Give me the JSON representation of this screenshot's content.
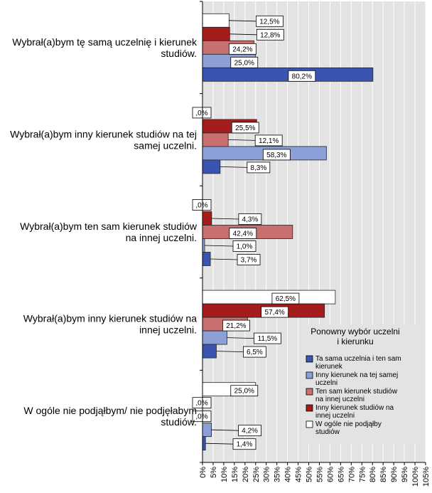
{
  "chart_data": {
    "type": "bar",
    "orientation": "horizontal",
    "categories": [
      [
        "Wybrał(a)bym tę samą uczelnię i kierunek",
        "studiów."
      ],
      [
        "Wybrał(a)bym inny kierunek studiów na tej",
        "samej uczelni."
      ],
      [
        "Wybrał(a)bym ten sam kierunek studiów",
        "na innej uczelni."
      ],
      [
        "Wybrał(a)bym inny kierunek studiów na",
        "innej uczelni."
      ],
      [
        "W ogóle nie podjąłbym/ nie podjęłabym",
        "studiów."
      ]
    ],
    "series": [
      {
        "name": [
          "W ogóle nie podjąłby",
          "studiów"
        ],
        "color": "#ffffff",
        "values": [
          12.5,
          0.0,
          0.0,
          62.5,
          25.0
        ],
        "labels": [
          "12,5%",
          ",0%",
          ",0%",
          "62,5%",
          "25,0%"
        ]
      },
      {
        "name": [
          "Inny kierunek studiów na",
          "innej uczelni"
        ],
        "color": "#a51c1c",
        "values": [
          12.8,
          25.5,
          4.3,
          57.4,
          0.0
        ],
        "labels": [
          "12,8%",
          "25,5%",
          "4,3%",
          "57,4%",
          ",0%"
        ]
      },
      {
        "name": [
          "Ten sam kierunek studiów",
          "na innej uczelni"
        ],
        "color": "#c86f6f",
        "values": [
          24.2,
          12.1,
          42.4,
          21.2,
          0.0
        ],
        "labels": [
          "24,2%",
          "12,1%",
          "42,4%",
          "21,2%",
          ",0%"
        ]
      },
      {
        "name": [
          "Inny kierunek na tej samej",
          "uczelni"
        ],
        "color": "#8c9fd6",
        "values": [
          25.0,
          58.3,
          1.0,
          11.5,
          4.2
        ],
        "labels": [
          "25,0%",
          "58,3%",
          "1,0%",
          "11,5%",
          "4,2%"
        ]
      },
      {
        "name": [
          "Ta sama uczelnia i ten sam",
          "kierunek"
        ],
        "color": "#3a55b0",
        "values": [
          80.2,
          8.3,
          3.7,
          6.5,
          1.4
        ],
        "labels": [
          "80,2%",
          "8,3%",
          "3,7%",
          "6,5%",
          "1,4%"
        ]
      }
    ],
    "legend_order": [
      4,
      3,
      2,
      1,
      0
    ],
    "legend": {
      "title": [
        "Ponowny wybór uczelni",
        "i kierunku"
      ],
      "placement": "bottom-right"
    },
    "xlim": [
      0,
      105
    ],
    "x_ticks": [
      0,
      5,
      10,
      15,
      20,
      25,
      30,
      35,
      40,
      45,
      50,
      55,
      60,
      65,
      70,
      75,
      80,
      85,
      90,
      95,
      100,
      105
    ],
    "x_tick_labels": [
      "0%",
      "5%",
      "10%",
      "15%",
      "20%",
      "25%",
      "30%",
      "35%",
      "40%",
      "45%",
      "50%",
      "55%",
      "60%",
      "65%",
      "70%",
      "75%",
      "80%",
      "85%",
      "90%",
      "95%",
      "100%",
      "105%"
    ],
    "grid": true,
    "plot_background": "#e3e3e3"
  }
}
